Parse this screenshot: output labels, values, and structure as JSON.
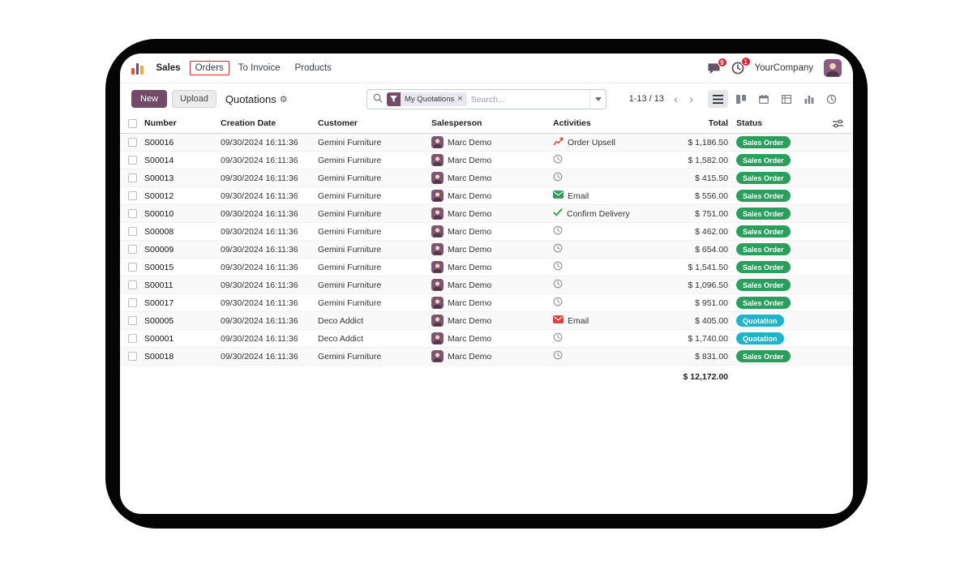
{
  "colors": {
    "primary": "#714B67",
    "success": "#28a05c",
    "info": "#1db5c9",
    "alert_badge": "#e11d2e",
    "annotation": "#e5231f"
  },
  "icons": {
    "app-icon": "bar-chart",
    "messages-icon": "chat-bubble",
    "activities-icon": "clock",
    "search-icon": "magnifier",
    "filter-icon": "funnel",
    "caret-down-icon": "triangle-down",
    "chevron-left-icon": "‹",
    "chevron-right-icon": "›",
    "view-list-icon": "list-lines",
    "view-kanban-icon": "kanban-columns",
    "view-calendar-icon": "calendar",
    "view-pivot-icon": "pivot-grid",
    "view-graph-icon": "bar-graph",
    "view-activity-icon": "clock",
    "gear-icon": "⚙",
    "column-settings-icon": "sliders",
    "activity-clock-icon": "clock-outline",
    "upsell-icon": "line-chart-red",
    "email-green-icon": "envelope-green",
    "email-red-icon": "envelope-red",
    "check-icon": "green-check"
  },
  "topbar": {
    "menu": {
      "sales": "Sales",
      "orders": "Orders",
      "to_invoice": "To Invoice",
      "products": "Products"
    },
    "badges": {
      "messages": "9",
      "activities": "1"
    },
    "company": "YourCompany"
  },
  "controls": {
    "new_label": "New",
    "upload_label": "Upload",
    "title": "Quotations",
    "gear": "⚙",
    "search": {
      "facet_label": "My Quotations",
      "facet_close": "×",
      "placeholder": "Search..."
    },
    "pager_range": "1-13 / 13",
    "chevron_left": "‹",
    "chevron_right": "›"
  },
  "table": {
    "columns": [
      "Number",
      "Creation Date",
      "Customer",
      "Salesperson",
      "Activities",
      "Total",
      "Status"
    ],
    "rows": [
      {
        "number": "S00016",
        "date": "09/30/2024 16:11:36",
        "customer": "Gemini Furniture",
        "salesperson": "Marc Demo",
        "activity_type": "upsell",
        "activity_label": "Order Upsell",
        "total": "$ 1,186.50",
        "status": "Sales Order",
        "status_variant": "success"
      },
      {
        "number": "S00014",
        "date": "09/30/2024 16:11:36",
        "customer": "Gemini Furniture",
        "salesperson": "Marc Demo",
        "activity_type": "clock",
        "activity_label": "",
        "total": "$ 1,582.00",
        "status": "Sales Order",
        "status_variant": "success"
      },
      {
        "number": "S00013",
        "date": "09/30/2024 16:11:36",
        "customer": "Gemini Furniture",
        "salesperson": "Marc Demo",
        "activity_type": "clock",
        "activity_label": "",
        "total": "$ 415.50",
        "status": "Sales Order",
        "status_variant": "success"
      },
      {
        "number": "S00012",
        "date": "09/30/2024 16:11:36",
        "customer": "Gemini Furniture",
        "salesperson": "Marc Demo",
        "activity_type": "email_green",
        "activity_label": "Email",
        "total": "$ 556.00",
        "status": "Sales Order",
        "status_variant": "success"
      },
      {
        "number": "S00010",
        "date": "09/30/2024 16:11:36",
        "customer": "Gemini Furniture",
        "salesperson": "Marc Demo",
        "activity_type": "check",
        "activity_label": "Confirm Delivery",
        "total": "$ 751.00",
        "status": "Sales Order",
        "status_variant": "success"
      },
      {
        "number": "S00008",
        "date": "09/30/2024 16:11:36",
        "customer": "Gemini Furniture",
        "salesperson": "Marc Demo",
        "activity_type": "clock",
        "activity_label": "",
        "total": "$ 462.00",
        "status": "Sales Order",
        "status_variant": "success"
      },
      {
        "number": "S00009",
        "date": "09/30/2024 16:11:36",
        "customer": "Gemini Furniture",
        "salesperson": "Marc Demo",
        "activity_type": "clock",
        "activity_label": "",
        "total": "$ 654.00",
        "status": "Sales Order",
        "status_variant": "success"
      },
      {
        "number": "S00015",
        "date": "09/30/2024 16:11:36",
        "customer": "Gemini Furniture",
        "salesperson": "Marc Demo",
        "activity_type": "clock",
        "activity_label": "",
        "total": "$ 1,541.50",
        "status": "Sales Order",
        "status_variant": "success"
      },
      {
        "number": "S00011",
        "date": "09/30/2024 16:11:36",
        "customer": "Gemini Furniture",
        "salesperson": "Marc Demo",
        "activity_type": "clock",
        "activity_label": "",
        "total": "$ 1,096.50",
        "status": "Sales Order",
        "status_variant": "success"
      },
      {
        "number": "S00017",
        "date": "09/30/2024 16:11:36",
        "customer": "Gemini Furniture",
        "salesperson": "Marc Demo",
        "activity_type": "clock",
        "activity_label": "",
        "total": "$ 951.00",
        "status": "Sales Order",
        "status_variant": "success"
      },
      {
        "number": "S00005",
        "date": "09/30/2024 16:11:36",
        "customer": "Deco Addict",
        "salesperson": "Marc Demo",
        "activity_type": "email_red",
        "activity_label": "Email",
        "total": "$ 405.00",
        "status": "Quotation",
        "status_variant": "info"
      },
      {
        "number": "S00001",
        "date": "09/30/2024 16:11:36",
        "customer": "Deco Addict",
        "salesperson": "Marc Demo",
        "activity_type": "clock",
        "activity_label": "",
        "total": "$ 1,740.00",
        "status": "Quotation",
        "status_variant": "info"
      },
      {
        "number": "S00018",
        "date": "09/30/2024 16:11:36",
        "customer": "Gemini Furniture",
        "salesperson": "Marc Demo",
        "activity_type": "clock",
        "activity_label": "",
        "total": "$ 831.00",
        "status": "Sales Order",
        "status_variant": "success"
      }
    ],
    "footer_total": "$ 12,172.00"
  }
}
